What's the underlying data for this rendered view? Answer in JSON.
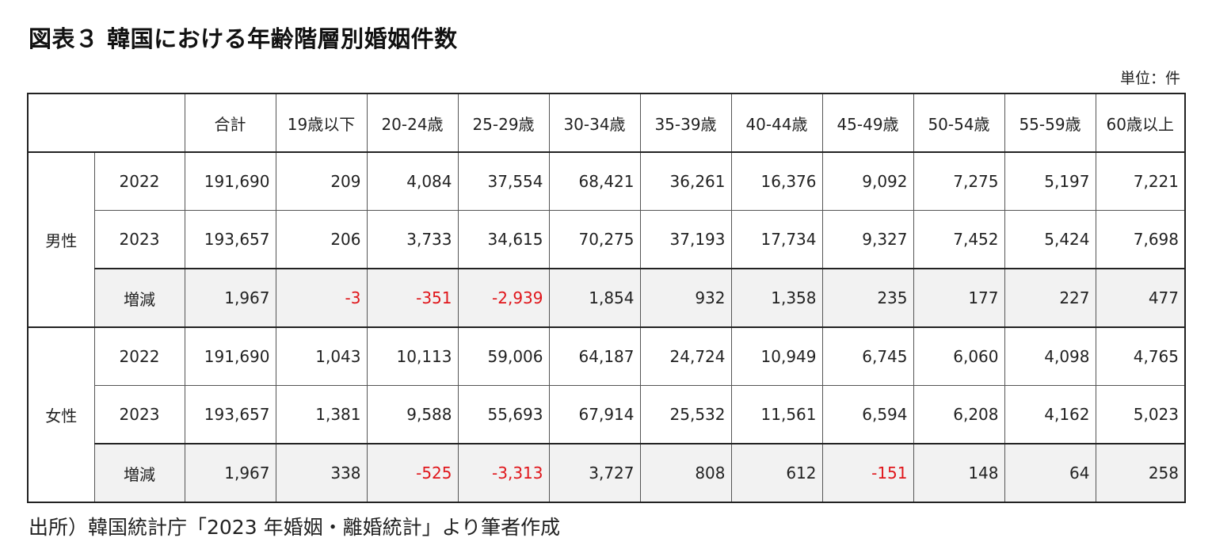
{
  "title": "図表３ 韓国における年齢階層別婚姻件数",
  "unit_label": "単位：件",
  "source": "出所）韓国統計庁「2023 年婚姻・離婚統計」より筆者作成",
  "headers": [
    "合計",
    "19歳以下",
    "20-24歳",
    "25-29歳",
    "30-34歳",
    "35-39歳",
    "40-44歳",
    "45-49歳",
    "50-54歳",
    "55-59歳",
    "60歳以上"
  ],
  "groups": [
    {
      "gender": "男性",
      "rows": [
        {
          "label": "2022",
          "values": [
            "191,690",
            "209",
            "4,084",
            "37,554",
            "68,421",
            "36,261",
            "16,376",
            "9,092",
            "7,275",
            "5,197",
            "7,221"
          ]
        },
        {
          "label": "2023",
          "values": [
            "193,657",
            "206",
            "3,733",
            "34,615",
            "70,275",
            "37,193",
            "17,734",
            "9,327",
            "7,452",
            "5,424",
            "7,698"
          ]
        },
        {
          "label": "増減",
          "values": [
            "1,967",
            "-3",
            "-351",
            "-2,939",
            "1,854",
            "932",
            "1,358",
            "235",
            "177",
            "227",
            "477"
          ]
        }
      ]
    },
    {
      "gender": "女性",
      "rows": [
        {
          "label": "2022",
          "values": [
            "191,690",
            "1,043",
            "10,113",
            "59,006",
            "64,187",
            "24,724",
            "10,949",
            "6,745",
            "6,060",
            "4,098",
            "4,765"
          ]
        },
        {
          "label": "2023",
          "values": [
            "193,657",
            "1,381",
            "9,588",
            "55,693",
            "67,914",
            "25,532",
            "11,561",
            "6,594",
            "6,208",
            "4,162",
            "5,023"
          ]
        },
        {
          "label": "増減",
          "values": [
            "1,967",
            "338",
            "-525",
            "-3,313",
            "3,727",
            "808",
            "612",
            "-151",
            "148",
            "64",
            "258"
          ]
        }
      ]
    }
  ],
  "colors": {
    "negative": "#e0161b",
    "diff_row_bg": "#f2f2f2"
  }
}
